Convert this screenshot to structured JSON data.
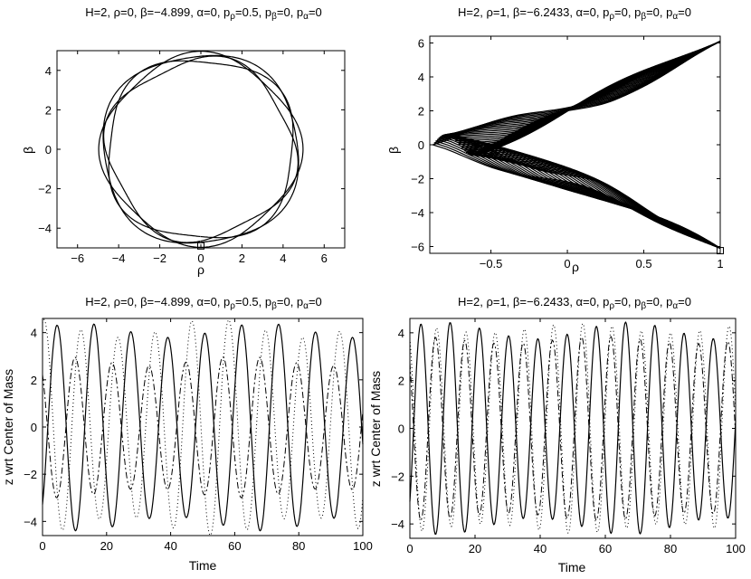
{
  "chart_data": [
    {
      "type": "line",
      "panel": "top-left",
      "title": {
        "pre": "H=2, ρ=0, β=−4.899, α=0, p",
        "s1": "ρ",
        "m1": "=0.5, p",
        "s2": "β",
        "m2": "=0, p",
        "s3": "α",
        "end": "=0"
      },
      "xlabel": "ρ",
      "ylabel": "β",
      "xlim": [
        -7,
        7
      ],
      "ylim": [
        -5,
        5
      ],
      "xticks": [
        -6,
        -4,
        -2,
        0,
        2,
        4,
        6
      ],
      "xtick_labels": [
        "−6",
        "−4",
        "−2",
        "0",
        "2",
        "4",
        "6"
      ],
      "yticks": [
        -4,
        -2,
        0,
        2,
        4
      ],
      "ytick_labels": [
        "−4",
        "−2",
        "0",
        "2",
        "4"
      ],
      "marker": {
        "x": 0,
        "y": -4.9
      },
      "grid": false
    },
    {
      "type": "line",
      "panel": "top-right",
      "title": {
        "pre": "H=2, ρ=1, β=−6.2433, α=0, p",
        "s1": "ρ",
        "m1": "=0, p",
        "s2": "β",
        "m2": "=0, p",
        "s3": "α",
        "end": "=0"
      },
      "xlabel": "ρ",
      "ylabel": "β",
      "xlim": [
        -0.9,
        1
      ],
      "ylim": [
        -6.4,
        6.4
      ],
      "xticks": [
        -0.5,
        0,
        0.5,
        1
      ],
      "xtick_labels": [
        "−0.5",
        "0",
        "0.5",
        "1"
      ],
      "yticks": [
        -6,
        -4,
        -2,
        0,
        2,
        4,
        6
      ],
      "ytick_labels": [
        "−6",
        "−4",
        "−2",
        "0",
        "2",
        "4",
        "6"
      ],
      "marker": {
        "x": 1,
        "y": -6.2433
      },
      "grid": false
    },
    {
      "type": "line",
      "panel": "bottom-left",
      "title": {
        "pre": "H=2, ρ=0, β=−4.899, α=0, p",
        "s1": "ρ",
        "m1": "=0.5, p",
        "s2": "β",
        "m2": "=0, p",
        "s3": "α",
        "end": "=0"
      },
      "xlabel": "Time",
      "ylabel": "z wrt Center of Mass",
      "xlim": [
        0,
        100
      ],
      "ylim": [
        -4.6,
        4.6
      ],
      "xticks": [
        0,
        20,
        40,
        60,
        80,
        100
      ],
      "xtick_labels": [
        "0",
        "20",
        "40",
        "60",
        "80",
        "100"
      ],
      "yticks": [
        -4,
        -2,
        0,
        2,
        4
      ],
      "ytick_labels": [
        "−4",
        "−2",
        "0",
        "2",
        "4"
      ],
      "grid": false
    },
    {
      "type": "line",
      "panel": "bottom-right",
      "title": {
        "pre": "H=2, ρ=1, β=−6.2433, α=0, p",
        "s1": "ρ",
        "m1": "=0, p",
        "s2": "β",
        "m2": "=0, p",
        "s3": "α",
        "end": "=0"
      },
      "xlabel": "Time",
      "ylabel": "z wrt Center of Mass",
      "xlim": [
        0,
        100
      ],
      "ylim": [
        -4.6,
        4.6
      ],
      "xticks": [
        0,
        20,
        40,
        60,
        80,
        100
      ],
      "xtick_labels": [
        "0",
        "20",
        "40",
        "60",
        "80",
        "100"
      ],
      "yticks": [
        -4,
        -2,
        0,
        2,
        4
      ],
      "ytick_labels": [
        "−4",
        "−2",
        "0",
        "2",
        "4"
      ],
      "grid": false
    }
  ]
}
